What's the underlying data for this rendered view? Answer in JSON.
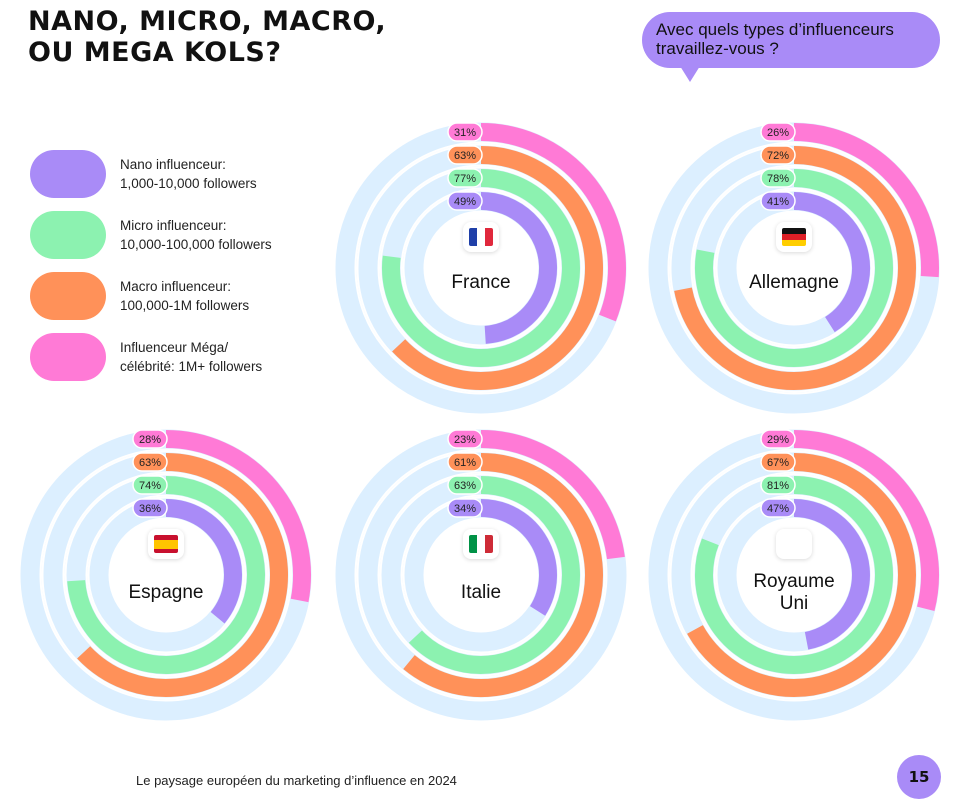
{
  "title": {
    "line1": "NANO, MICRO, MACRO,",
    "line2": "OU MEGA KOLS?"
  },
  "question": {
    "line1": "Avec quels types d’influenceurs",
    "line2": "travaillez-vous ?"
  },
  "colors": {
    "nano": "#a98bf7",
    "micro": "#8cf2b0",
    "macro": "#ff9159",
    "mega": "#ff7ad6",
    "track": "#dcefff"
  },
  "legend": [
    {
      "key": "nano",
      "line1": "Nano influenceur:",
      "line2": "1,000-10,000 followers"
    },
    {
      "key": "micro",
      "line1": "Micro influenceur:",
      "line2": "10,000-100,000 followers"
    },
    {
      "key": "macro",
      "line1": "Macro influenceur:",
      "line2": "100,000-1M followers"
    },
    {
      "key": "mega",
      "line1": "Influenceur Méga/",
      "line2": "célébrité: 1M+ followers"
    }
  ],
  "chart_data": {
    "type": "radial-bar",
    "unit": "%",
    "series_keys": [
      "nano",
      "micro",
      "macro",
      "mega"
    ],
    "charts": [
      {
        "country": "France",
        "label_lines": [
          "France"
        ],
        "flag": "france-flag",
        "values": {
          "nano": 49,
          "micro": 77,
          "macro": 63,
          "mega": 31
        },
        "labels": {
          "nano": "49%",
          "micro": "77%",
          "macro": "63%",
          "mega": "31%"
        }
      },
      {
        "country": "Allemagne",
        "label_lines": [
          "Allemagne"
        ],
        "flag": "germany-flag",
        "values": {
          "nano": 41,
          "micro": 78,
          "macro": 72,
          "mega": 26
        },
        "labels": {
          "nano": "41%",
          "micro": "78%",
          "macro": "72%",
          "mega": "26%"
        }
      },
      {
        "country": "Espagne",
        "label_lines": [
          "Espagne"
        ],
        "flag": "spain-flag",
        "values": {
          "nano": 36,
          "micro": 74,
          "macro": 63,
          "mega": 28
        },
        "labels": {
          "nano": "36%",
          "micro": "74%",
          "macro": "63%",
          "mega": "28%"
        }
      },
      {
        "country": "Italie",
        "label_lines": [
          "Italie"
        ],
        "flag": "italy-flag",
        "values": {
          "nano": 34,
          "micro": 63,
          "macro": 61,
          "mega": 23
        },
        "labels": {
          "nano": "34%",
          "micro": "63%",
          "macro": "61%",
          "mega": "23%"
        }
      },
      {
        "country": "Royaume Uni",
        "label_lines": [
          "Royaume",
          "Uni"
        ],
        "flag": "uk-flag",
        "values": {
          "nano": 47,
          "micro": 81,
          "macro": 67,
          "mega": 29
        },
        "labels": {
          "nano": "47%",
          "micro": "81%",
          "macro": "67%",
          "mega": "29%"
        }
      }
    ]
  },
  "footer": "Le paysage européen du marketing d’influence en 2024",
  "page_number": "15"
}
